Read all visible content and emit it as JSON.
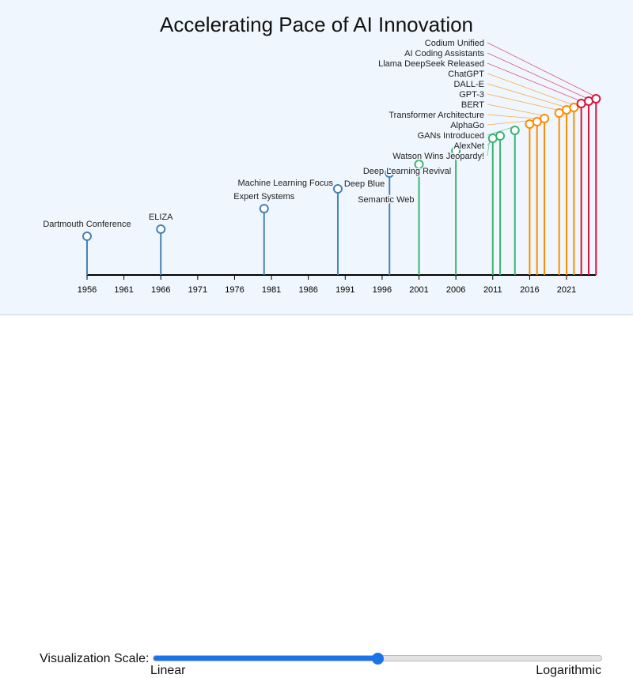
{
  "chart_data": {
    "type": "lollipop-timeline",
    "title": "Accelerating Pace of AI Innovation",
    "xlim": [
      1956,
      2025
    ],
    "xticks": [
      "1956",
      "1961",
      "1966",
      "1971",
      "1976",
      "1981",
      "1986",
      "1991",
      "1996",
      "2001",
      "2006",
      "2011",
      "2016",
      "2021"
    ],
    "grid": false,
    "events": [
      {
        "year": 1956,
        "label": "Dartmouth Conference",
        "value": 49,
        "color": "#4682b4"
      },
      {
        "year": 1966,
        "label": "ELIZA",
        "value": 58,
        "color": "#4682b4"
      },
      {
        "year": 1980,
        "label": "Expert Systems",
        "value": 84,
        "color": "#4682b4"
      },
      {
        "year": 1990,
        "label": "Machine Learning Focus",
        "value": 109,
        "color": "#4682b4"
      },
      {
        "year": 1997,
        "label": "Deep Blue",
        "value": 129,
        "color": "#4682b4"
      },
      {
        "year": 2001,
        "label": "Semantic Web",
        "value": 140,
        "color": "#3cb371"
      },
      {
        "year": 2006,
        "label": "Deep Learning Revival",
        "value": 157,
        "color": "#3cb371"
      },
      {
        "year": 2011,
        "label": "Watson Wins Jeopardy!",
        "value": 173,
        "color": "#3cb371"
      },
      {
        "year": 2012,
        "label": "AlexNet",
        "value": 176,
        "color": "#3cb371"
      },
      {
        "year": 2014,
        "label": "GANs Introduced",
        "value": 183,
        "color": "#3cb371"
      },
      {
        "year": 2016,
        "label": "AlphaGo",
        "value": 191,
        "color": "#ff8c00"
      },
      {
        "year": 2017,
        "label": "Transformer Architecture",
        "value": 194,
        "color": "#ff8c00"
      },
      {
        "year": 2018,
        "label": "BERT",
        "value": 198,
        "color": "#ff8c00"
      },
      {
        "year": 2020,
        "label": "GPT-3",
        "value": 205,
        "color": "#ff8c00"
      },
      {
        "year": 2021,
        "label": "DALL-E",
        "value": 209,
        "color": "#ff8c00"
      },
      {
        "year": 2022,
        "label": "ChatGPT",
        "value": 212,
        "color": "#ff8c00"
      },
      {
        "year": 2023,
        "label": "Llama DeepSeek Released",
        "value": 217,
        "color": "#dc143c"
      },
      {
        "year": 2024,
        "label": "AI Coding Assistants",
        "value": 220,
        "color": "#dc143c"
      },
      {
        "year": 2025,
        "label": "Codium Unified",
        "value": 223,
        "color": "#dc143c"
      }
    ]
  },
  "controls": {
    "label": "Visualization Scale:",
    "min_label": "Linear",
    "max_label": "Logarithmic",
    "slider_value_percent": 50
  }
}
